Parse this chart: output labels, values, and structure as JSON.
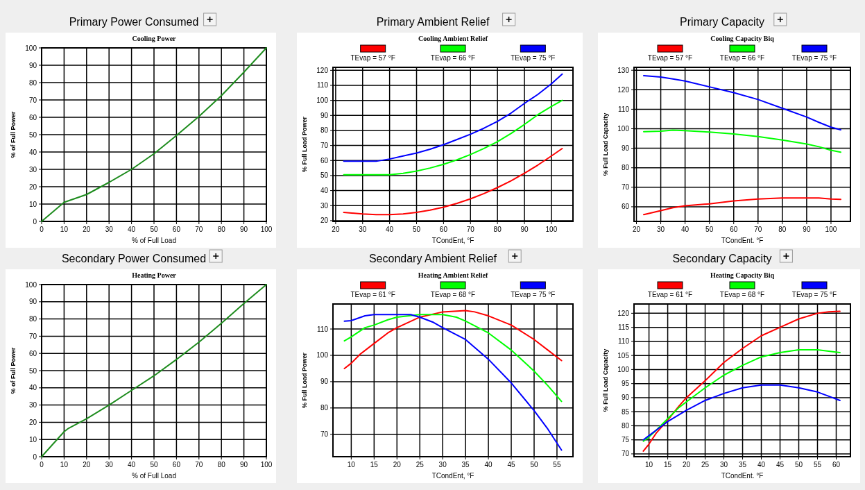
{
  "chart_data": [
    {
      "type": "line",
      "title": "Primary Power Consumed",
      "subtitle": "Cooling Power",
      "xlabel": "% of Full Load",
      "ylabel": "% of Full Power",
      "xlim": [
        0,
        100
      ],
      "ylim": [
        0,
        100
      ],
      "xticks": [
        0,
        10,
        20,
        30,
        40,
        50,
        60,
        70,
        80,
        90,
        100
      ],
      "yticks": [
        0,
        10,
        20,
        30,
        40,
        50,
        60,
        70,
        80,
        90,
        100
      ],
      "grid": true,
      "legend": false,
      "series": [
        {
          "color": "#1e8c1e",
          "x": [
            0,
            10,
            20,
            30,
            40,
            50,
            60,
            70,
            80,
            90,
            100
          ],
          "values": [
            0,
            11,
            15.5,
            22.5,
            30,
            39,
            49.5,
            60.5,
            72.5,
            86,
            100
          ]
        }
      ]
    },
    {
      "type": "line",
      "title": "Primary Ambient Relief",
      "subtitle": "Cooling Ambient Relief",
      "xlabel": "TCondEnt, °F",
      "ylabel": "% Full Load Power",
      "xlim": [
        19,
        108
      ],
      "ylim": [
        19.5,
        122
      ],
      "xticks": [
        20,
        30,
        40,
        50,
        60,
        70,
        80,
        90,
        100
      ],
      "yticks": [
        20,
        30,
        40,
        50,
        60,
        70,
        80,
        90,
        100,
        110,
        120
      ],
      "grid": true,
      "legend": "top",
      "series": [
        {
          "name": "TEvap = 57 °F",
          "color": "#ff0000",
          "x": [
            23,
            30,
            35,
            40,
            45,
            50,
            55,
            60,
            65,
            70,
            75,
            80,
            85,
            90,
            95,
            100,
            104
          ],
          "values": [
            25.5,
            24.5,
            24,
            24,
            24.5,
            25.5,
            27,
            29,
            31.5,
            34.5,
            38,
            42,
            46.5,
            51.5,
            57,
            63,
            68
          ]
        },
        {
          "name": "TEvap = 66 °F",
          "color": "#00ff00",
          "x": [
            23,
            30,
            40,
            45,
            50,
            55,
            60,
            65,
            70,
            75,
            80,
            85,
            90,
            95,
            100,
            104
          ],
          "values": [
            50.5,
            50.5,
            50.5,
            51.5,
            53,
            55,
            57.5,
            60.5,
            64,
            68,
            72.5,
            78,
            84,
            90.5,
            96,
            100
          ]
        },
        {
          "name": "TEvap = 75 °F",
          "color": "#0000ff",
          "x": [
            23,
            30,
            35,
            40,
            45,
            50,
            55,
            60,
            65,
            70,
            75,
            80,
            85,
            90,
            95,
            100,
            104
          ],
          "values": [
            59.5,
            59.5,
            59.5,
            61,
            63,
            65,
            67.5,
            70.5,
            74,
            77.5,
            81.5,
            86,
            91.5,
            98,
            104,
            111,
            117.5
          ]
        }
      ]
    },
    {
      "type": "line",
      "title": "Primary Capacity",
      "subtitle": "Cooling Capacity Biq",
      "xlabel": "TCondEnt. °F",
      "ylabel": "% Full Load Capacity",
      "xlim": [
        19,
        108
      ],
      "ylim": [
        52.5,
        131.5
      ],
      "xticks": [
        20,
        30,
        40,
        50,
        60,
        70,
        80,
        90,
        100
      ],
      "yticks": [
        60,
        70,
        80,
        90,
        100,
        110,
        120,
        130
      ],
      "grid": true,
      "legend": "top",
      "series": [
        {
          "name": "TEvap = 57 °F",
          "color": "#ff0000",
          "x": [
            23,
            30,
            35,
            40,
            50,
            60,
            70,
            80,
            90,
            95,
            100,
            104
          ],
          "values": [
            56,
            58,
            59.5,
            60.5,
            61.5,
            63,
            64,
            64.5,
            64.5,
            64.5,
            64,
            63.8
          ]
        },
        {
          "name": "TEvap = 66 °F",
          "color": "#00ff00",
          "x": [
            23,
            30,
            35,
            40,
            50,
            60,
            70,
            80,
            90,
            95,
            100,
            104
          ],
          "values": [
            98.5,
            98.8,
            99.3,
            99,
            98.3,
            97.3,
            96,
            94.2,
            92.2,
            90.8,
            89,
            88
          ]
        },
        {
          "name": "TEvap = 75 °F",
          "color": "#0000ff",
          "x": [
            23,
            30,
            35,
            40,
            50,
            60,
            70,
            80,
            90,
            95,
            100,
            104
          ],
          "values": [
            127.2,
            126.5,
            125.5,
            124.5,
            121.5,
            118.5,
            115,
            110.5,
            106,
            103.3,
            100.8,
            99.5
          ]
        }
      ]
    },
    {
      "type": "line",
      "title": "Secondary Power Consumed",
      "subtitle": "Heating Power",
      "xlabel": "% of Full Load",
      "ylabel": "% of Full Power",
      "xlim": [
        0,
        100
      ],
      "ylim": [
        0,
        100
      ],
      "xticks": [
        0,
        10,
        20,
        30,
        40,
        50,
        60,
        70,
        80,
        90,
        100
      ],
      "yticks": [
        0,
        10,
        20,
        30,
        40,
        50,
        60,
        70,
        80,
        90,
        100
      ],
      "grid": true,
      "legend": false,
      "series": [
        {
          "color": "#1e8c1e",
          "x": [
            0,
            10,
            12,
            20,
            30,
            40,
            50,
            60,
            70,
            80,
            90,
            100
          ],
          "values": [
            0,
            14.5,
            16.5,
            22,
            30,
            38.5,
            47,
            56.5,
            66.5,
            77.5,
            89,
            100
          ]
        }
      ]
    },
    {
      "type": "line",
      "title": "Secondary Ambient Relief",
      "subtitle": "Heating Ambient Relief",
      "xlabel": "TCondEnt, °F",
      "ylabel": "% Full Load Power",
      "xlim": [
        6,
        58.5
      ],
      "ylim": [
        61.5,
        119.5
      ],
      "xticks": [
        10,
        15,
        20,
        25,
        30,
        35,
        40,
        45,
        50,
        55
      ],
      "yticks": [
        70,
        80,
        90,
        100,
        110
      ],
      "grid": true,
      "legend": "top",
      "series": [
        {
          "name": "TEvap = 61 °F",
          "color": "#ff0000",
          "x": [
            8.5,
            10,
            12,
            15,
            18,
            20,
            25,
            30,
            35,
            37,
            40,
            45,
            50,
            53,
            56
          ],
          "values": [
            95,
            97,
            100.5,
            104.5,
            108.5,
            110.5,
            114.5,
            116.5,
            117,
            116.5,
            115,
            111.5,
            106,
            102,
            98
          ]
        },
        {
          "name": "TEvap = 68 °F",
          "color": "#00ff00",
          "x": [
            8.5,
            10,
            13,
            15,
            18,
            20,
            25,
            30,
            33,
            35,
            40,
            45,
            50,
            53,
            56
          ],
          "values": [
            105.5,
            107,
            110.5,
            111.5,
            113.5,
            114.5,
            115.5,
            115.5,
            114.5,
            113,
            108.5,
            102,
            94,
            88.5,
            82.5
          ]
        },
        {
          "name": "TEvap = 75 °F",
          "color": "#0000ff",
          "x": [
            8.5,
            10,
            13,
            15,
            20,
            23,
            25,
            28,
            30,
            35,
            40,
            45,
            50,
            53,
            56
          ],
          "values": [
            113,
            113.2,
            115,
            115.5,
            115.5,
            115.5,
            114.5,
            112.5,
            110.5,
            106,
            98.5,
            89.5,
            79,
            72,
            64
          ]
        }
      ]
    },
    {
      "type": "line",
      "title": "Secondary Capacity",
      "subtitle": "Heating Capacity Biq",
      "xlabel": "TCondEnt. °F",
      "ylabel": "% Full Load Capacity",
      "xlim": [
        6,
        63.8
      ],
      "ylim": [
        69,
        123.3
      ],
      "xticks": [
        10,
        15,
        20,
        25,
        30,
        35,
        40,
        45,
        50,
        55,
        60
      ],
      "yticks": [
        70,
        75,
        80,
        85,
        90,
        95,
        100,
        105,
        110,
        115,
        120
      ],
      "grid": true,
      "legend": "top",
      "series": [
        {
          "name": "TEvap = 61 °F",
          "color": "#ff0000",
          "x": [
            8.5,
            10,
            12,
            15,
            18,
            20,
            25,
            30,
            35,
            40,
            45,
            50,
            55,
            58,
            61
          ],
          "values": [
            71,
            73.5,
            77.5,
            82,
            87,
            90,
            96,
            102.5,
            107.5,
            112,
            115,
            118,
            120,
            120.5,
            120.7
          ]
        },
        {
          "name": "TEvap = 68 °F",
          "color": "#00ff00",
          "x": [
            8.5,
            10,
            12,
            15,
            18,
            20,
            25,
            30,
            35,
            40,
            45,
            50,
            55,
            58,
            61
          ],
          "values": [
            74.5,
            76,
            78.5,
            82.5,
            86.5,
            88.5,
            93.5,
            98,
            101.5,
            104.5,
            106,
            107,
            107,
            106.5,
            106
          ]
        },
        {
          "name": "TEvap = 75 °F",
          "color": "#0000ff",
          "x": [
            8.5,
            10,
            12,
            15,
            20,
            25,
            30,
            35,
            40,
            45,
            50,
            55,
            58,
            61
          ],
          "values": [
            75,
            76.5,
            78.5,
            81.5,
            85.5,
            89,
            91.5,
            93.5,
            94.5,
            94.5,
            93.5,
            92,
            90.5,
            89
          ]
        }
      ]
    }
  ]
}
